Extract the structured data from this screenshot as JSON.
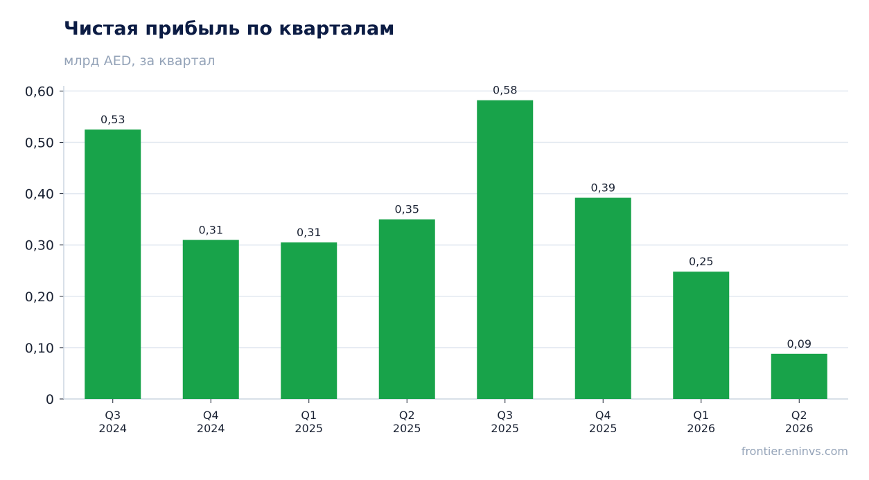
{
  "header": {
    "title": "Чистая прибыль по кварталам",
    "subtitle": "млрд AED, за квартал"
  },
  "footer": {
    "source": "frontier.eninvs.com"
  },
  "colors": {
    "bar": "#18a34a",
    "grid": "#e2e8f0",
    "axis": "#cbd5e1"
  },
  "chart_data": {
    "type": "bar",
    "title": "Чистая прибыль по кварталам",
    "subtitle": "млрд AED, за квартал",
    "xlabel": "",
    "ylabel": "",
    "categories": [
      [
        "Q3",
        "2024"
      ],
      [
        "Q4",
        "2024"
      ],
      [
        "Q1",
        "2025"
      ],
      [
        "Q2",
        "2025"
      ],
      [
        "Q3",
        "2025"
      ],
      [
        "Q4",
        "2025"
      ],
      [
        "Q1",
        "2026"
      ],
      [
        "Q2",
        "2026"
      ]
    ],
    "values": [
      0.525,
      0.31,
      0.305,
      0.35,
      0.582,
      0.392,
      0.248,
      0.088
    ],
    "data_labels": [
      "0,53",
      "0,31",
      "0,31",
      "0,35",
      "0,58",
      "0,39",
      "0,25",
      "0,09"
    ],
    "yticks": [
      0,
      0.1,
      0.2,
      0.3,
      0.4,
      0.5,
      0.6
    ],
    "ytick_labels": [
      "0",
      "0,10",
      "0,20",
      "0,30",
      "0,40",
      "0,50",
      "0,60"
    ],
    "ylim": [
      0,
      0.61
    ],
    "grid": true,
    "legend": "none"
  }
}
